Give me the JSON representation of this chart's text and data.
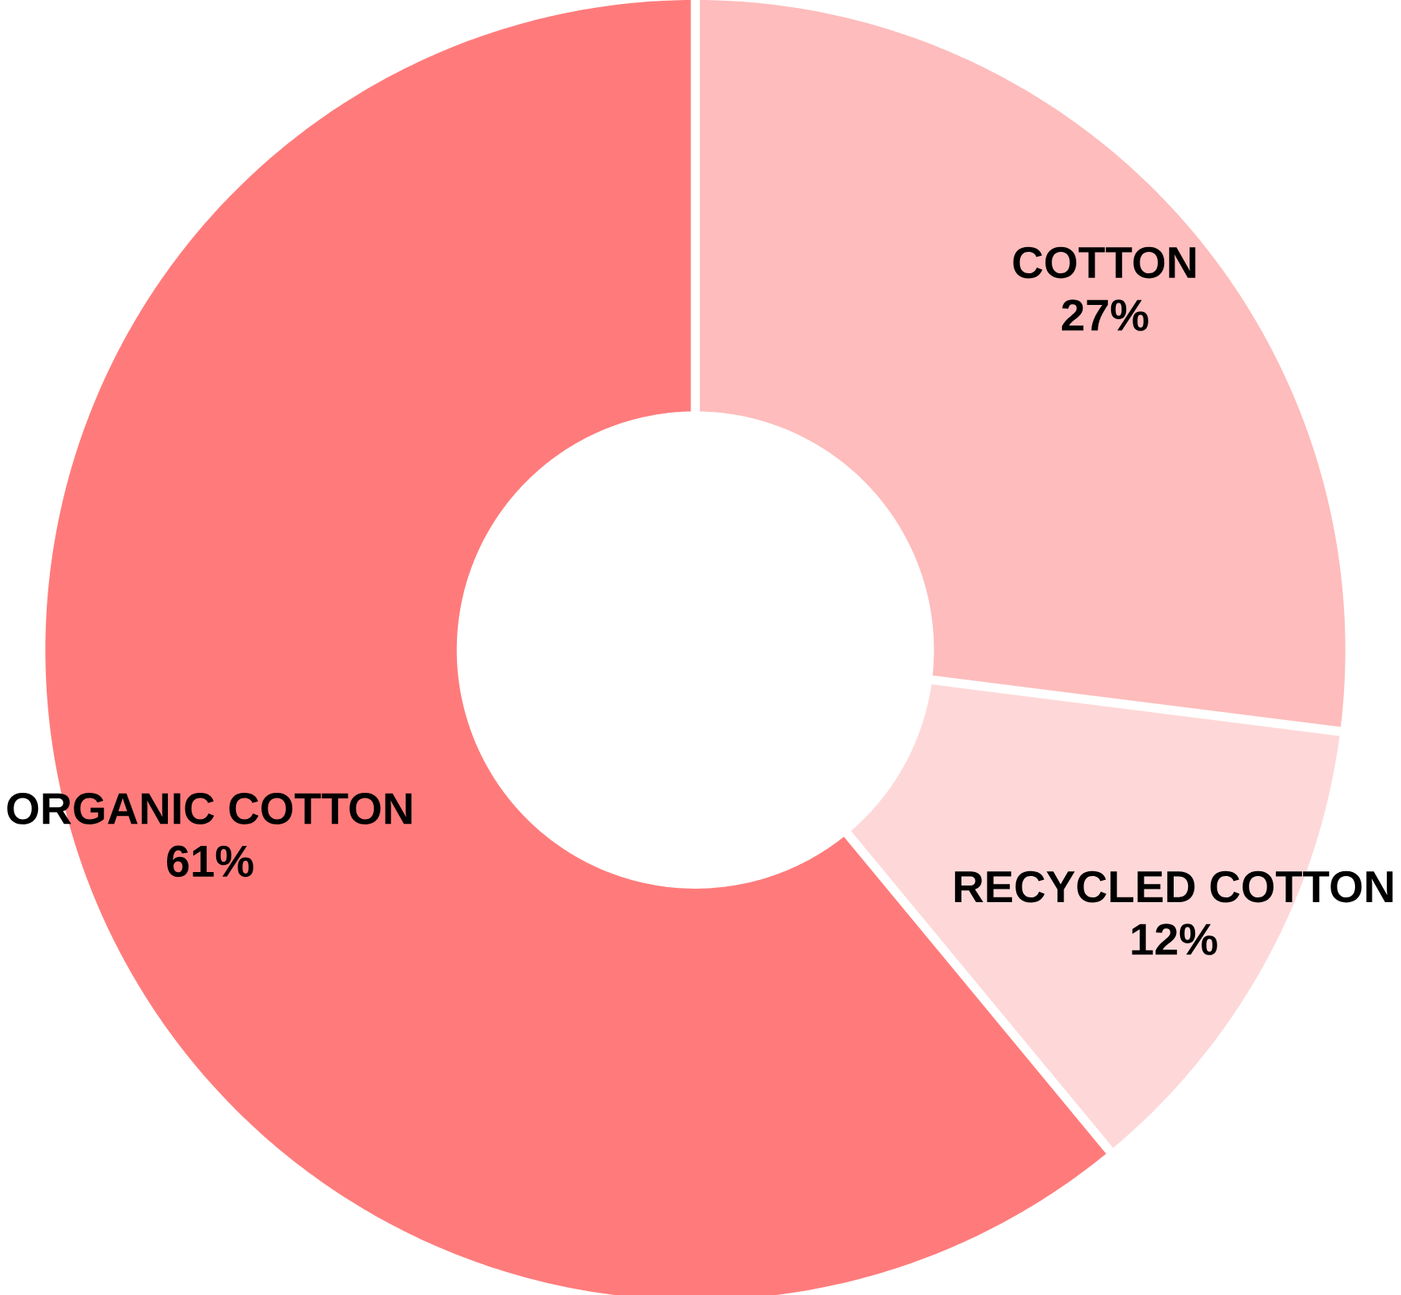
{
  "chart_data": {
    "type": "donut",
    "categories": [
      "COTTON",
      "RECYCLED COTTON",
      "ORGANIC COTTON"
    ],
    "values": [
      27,
      12,
      61
    ],
    "colors": [
      "#febcbc",
      "#fed8d8",
      "#ff7b7b"
    ],
    "value_labels": [
      "27%",
      "12%",
      "61%"
    ]
  }
}
